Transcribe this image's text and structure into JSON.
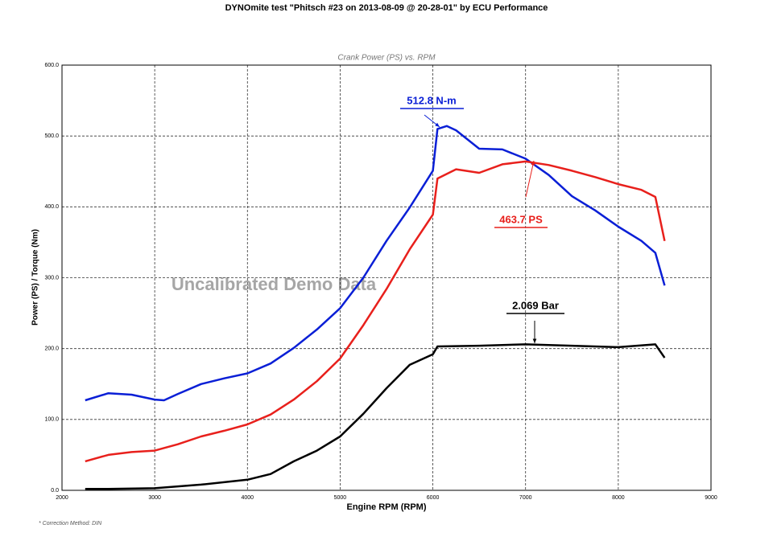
{
  "chart_data": {
    "type": "line",
    "title": "DYNOmite test \"Phitsch #23 on 2013-08-09 @ 20-28-01\" by ECU Performance",
    "subtitle": "Crank Power (PS) vs. RPM",
    "x_label": "Engine RPM (RPM)",
    "y_label": "Power (PS) / Torque (Nm)",
    "watermark": "Uncalibrated Demo Data",
    "footnote": "* Correction Method: DIN",
    "xlim": [
      2000,
      9000
    ],
    "xticks": [
      2000,
      3000,
      4000,
      5000,
      6000,
      7000,
      8000,
      9000
    ],
    "ylim": [
      0,
      600
    ],
    "yticks": [
      {
        "value": 0,
        "label": "0.0"
      },
      {
        "value": 100,
        "label": "100.0"
      },
      {
        "value": 200,
        "label": "200.0"
      },
      {
        "value": 300,
        "label": "300.0"
      },
      {
        "value": 400,
        "label": "400.0"
      },
      {
        "value": 500,
        "label": "500.0"
      },
      {
        "value": 600,
        "label": "600.0"
      }
    ],
    "grid": true,
    "series": [
      {
        "color": "#0a1fd6",
        "x": [
          2250,
          2500,
          2750,
          3000,
          3100,
          3250,
          3500,
          3750,
          4000,
          4250,
          4500,
          4750,
          5000,
          5250,
          5500,
          5750,
          6000,
          6050,
          6150,
          6250,
          6500,
          6750,
          7000,
          7250,
          7500,
          7750,
          8000,
          8250,
          8400,
          8500
        ],
        "values": [
          127,
          137,
          135,
          128,
          127,
          136,
          150,
          158,
          165,
          179,
          201,
          227,
          257,
          300,
          352,
          399,
          451,
          510,
          514,
          508,
          482,
          481,
          468,
          445,
          415,
          395,
          372,
          352,
          335,
          289
        ]
      },
      {
        "color": "#e8201c",
        "x": [
          2250,
          2500,
          2750,
          3000,
          3250,
          3500,
          3750,
          4000,
          4250,
          4500,
          4750,
          5000,
          5250,
          5500,
          5750,
          6000,
          6050,
          6250,
          6500,
          6750,
          7000,
          7250,
          7500,
          7750,
          8000,
          8250,
          8400,
          8500
        ],
        "values": [
          41,
          50,
          54,
          56,
          65,
          76,
          84,
          93,
          107,
          128,
          154,
          186,
          233,
          284,
          340,
          389,
          440,
          453,
          448,
          460,
          464,
          459,
          451,
          442,
          432,
          424,
          414,
          352
        ]
      },
      {
        "color": "#000000",
        "x": [
          2250,
          2500,
          3000,
          3500,
          4000,
          4250,
          4500,
          4750,
          5000,
          5250,
          5500,
          5750,
          6000,
          6050,
          6500,
          7000,
          7500,
          8000,
          8400,
          8500
        ],
        "values": [
          2,
          2,
          3,
          8,
          15,
          23,
          41,
          56,
          76,
          108,
          144,
          177,
          192,
          203,
          204,
          206,
          204,
          202,
          206,
          187
        ]
      }
    ],
    "annotations": [
      {
        "text": "512.8 N-m",
        "color": "#0a1fd6"
      },
      {
        "text": "463.7 PS",
        "color": "#e8201c"
      },
      {
        "text": "2.069 Bar",
        "color": "#000000"
      }
    ]
  }
}
